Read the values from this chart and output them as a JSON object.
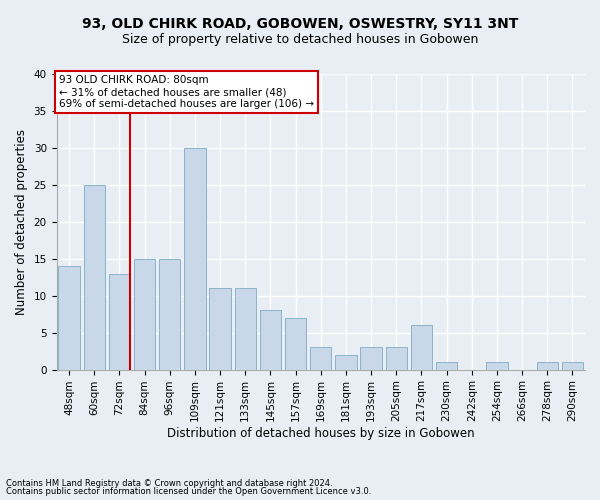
{
  "title": "93, OLD CHIRK ROAD, GOBOWEN, OSWESTRY, SY11 3NT",
  "subtitle": "Size of property relative to detached houses in Gobowen",
  "xlabel": "Distribution of detached houses by size in Gobowen",
  "ylabel": "Number of detached properties",
  "categories": [
    "48sqm",
    "60sqm",
    "72sqm",
    "84sqm",
    "96sqm",
    "109sqm",
    "121sqm",
    "133sqm",
    "145sqm",
    "157sqm",
    "169sqm",
    "181sqm",
    "193sqm",
    "205sqm",
    "217sqm",
    "230sqm",
    "242sqm",
    "254sqm",
    "266sqm",
    "278sqm",
    "290sqm"
  ],
  "values": [
    14,
    25,
    13,
    15,
    15,
    30,
    11,
    11,
    8,
    7,
    3,
    2,
    3,
    3,
    6,
    1,
    0,
    1,
    0,
    1,
    1
  ],
  "bar_color": "#c8d8e8",
  "bar_edge_color": "#8ab4cc",
  "annotation_title": "93 OLD CHIRK ROAD: 80sqm",
  "annotation_line1": "← 31% of detached houses are smaller (48)",
  "annotation_line2": "69% of semi-detached houses are larger (106) →",
  "ylim": [
    0,
    40
  ],
  "yticks": [
    0,
    5,
    10,
    15,
    20,
    25,
    30,
    35,
    40
  ],
  "footnote1": "Contains HM Land Registry data © Crown copyright and database right 2024.",
  "footnote2": "Contains public sector information licensed under the Open Government Licence v3.0.",
  "bg_color": "#e8eef4",
  "plot_bg_color": "#e8eef4",
  "grid_color": "#ffffff",
  "annotation_box_edge": "#cc0000",
  "red_line_color": "#cc0000",
  "title_fontsize": 10,
  "subtitle_fontsize": 9,
  "axis_label_fontsize": 8.5,
  "tick_fontsize": 7.5,
  "annotation_fontsize": 7.5,
  "footnote_fontsize": 6.0
}
